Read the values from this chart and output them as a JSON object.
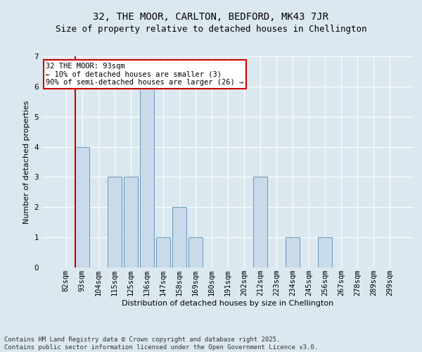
{
  "title": "32, THE MOOR, CARLTON, BEDFORD, MK43 7JR",
  "subtitle": "Size of property relative to detached houses in Chellington",
  "xlabel": "Distribution of detached houses by size in Chellington",
  "ylabel": "Number of detached properties",
  "categories": [
    "82sqm",
    "93sqm",
    "104sqm",
    "115sqm",
    "125sqm",
    "136sqm",
    "147sqm",
    "158sqm",
    "169sqm",
    "180sqm",
    "191sqm",
    "202sqm",
    "212sqm",
    "223sqm",
    "234sqm",
    "245sqm",
    "256sqm",
    "267sqm",
    "278sqm",
    "289sqm",
    "299sqm"
  ],
  "values": [
    0,
    4,
    0,
    3,
    3,
    6,
    1,
    2,
    1,
    0,
    0,
    0,
    3,
    0,
    1,
    0,
    1,
    0,
    0,
    0,
    0
  ],
  "bar_color": "#c9daea",
  "bar_edge_color": "#6699bb",
  "highlight_index": 1,
  "highlight_line_color": "#cc0000",
  "ylim": [
    0,
    7
  ],
  "yticks": [
    0,
    1,
    2,
    3,
    4,
    5,
    6,
    7
  ],
  "annotation_text": "32 THE MOOR: 93sqm\n← 10% of detached houses are smaller (3)\n90% of semi-detached houses are larger (26) →",
  "annotation_box_color": "#ffffff",
  "annotation_box_edge": "#cc0000",
  "background_color": "#dce8f0",
  "plot_bg_color": "#dce8f0",
  "footer_line1": "Contains HM Land Registry data © Crown copyright and database right 2025.",
  "footer_line2": "Contains public sector information licensed under the Open Government Licence v3.0.",
  "title_fontsize": 10,
  "subtitle_fontsize": 9,
  "axis_label_fontsize": 8,
  "tick_fontsize": 7.5,
  "annotation_fontsize": 7.5,
  "footer_fontsize": 6.5
}
